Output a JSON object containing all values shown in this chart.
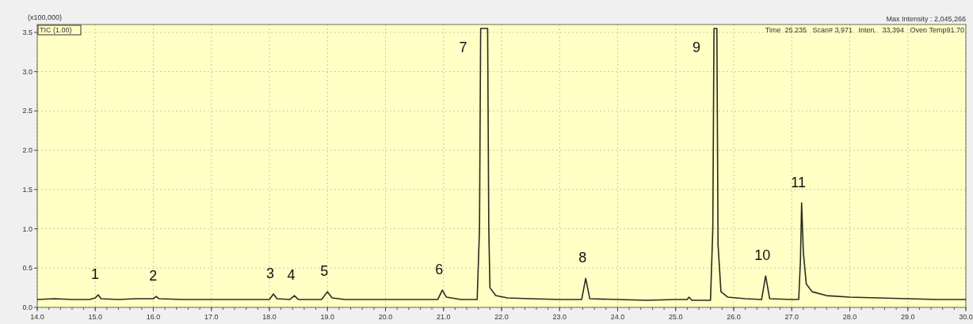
{
  "chart_data": {
    "type": "line",
    "ylabel": "(x100,000)",
    "xlim": [
      14,
      30
    ],
    "ylim": [
      0,
      3.6
    ],
    "xticks": [
      {
        "value": 14,
        "label": "14.0"
      },
      {
        "value": 15,
        "label": "15.0"
      },
      {
        "value": 16,
        "label": "16.0"
      },
      {
        "value": 17,
        "label": "17.0"
      },
      {
        "value": 18,
        "label": "18.0"
      },
      {
        "value": 19,
        "label": "19.0"
      },
      {
        "value": 20,
        "label": "20.0"
      },
      {
        "value": 21,
        "label": "21.0"
      },
      {
        "value": 22,
        "label": "22.0"
      },
      {
        "value": 23,
        "label": "23.0"
      },
      {
        "value": 24,
        "label": "24.0"
      },
      {
        "value": 25,
        "label": "25.0"
      },
      {
        "value": 26,
        "label": "26.0"
      },
      {
        "value": 27,
        "label": "27.0"
      },
      {
        "value": 28,
        "label": "28.0"
      },
      {
        "value": 29,
        "label": "29.0"
      },
      {
        "value": 30,
        "label": "30.0"
      }
    ],
    "yticks": [
      {
        "value": 0,
        "label": "0.0"
      },
      0.5,
      {
        "value": 1,
        "label": "1.0"
      },
      1.5,
      {
        "value": 2,
        "label": "2.0"
      },
      2.5,
      {
        "value": 3,
        "label": "3.0"
      },
      3.5
    ],
    "grid": true,
    "series": [
      {
        "color": "#2b2b1e",
        "x": [
          14.0,
          14.3,
          14.6,
          14.9,
          15.0,
          15.05,
          15.1,
          15.4,
          15.7,
          16.0,
          16.05,
          16.1,
          16.5,
          17.0,
          17.5,
          18.0,
          18.07,
          18.13,
          18.35,
          18.43,
          18.5,
          18.9,
          19.0,
          19.08,
          19.3,
          19.8,
          20.3,
          20.9,
          20.98,
          21.05,
          21.3,
          21.58,
          21.62,
          21.64,
          21.76,
          21.78,
          21.8,
          21.9,
          22.1,
          22.5,
          23.0,
          23.38,
          23.45,
          23.52,
          24.0,
          24.5,
          25.0,
          25.2,
          25.23,
          25.28,
          25.6,
          25.64,
          25.66,
          25.71,
          25.73,
          25.78,
          25.9,
          26.2,
          26.48,
          26.55,
          26.62,
          27.0,
          27.12,
          27.15,
          27.17,
          27.2,
          27.25,
          27.35,
          27.6,
          28.0,
          28.5,
          29.0,
          29.5,
          30.0
        ],
        "values": [
          0.1,
          0.11,
          0.1,
          0.1,
          0.12,
          0.16,
          0.11,
          0.1,
          0.11,
          0.11,
          0.14,
          0.11,
          0.1,
          0.1,
          0.1,
          0.1,
          0.17,
          0.11,
          0.1,
          0.15,
          0.1,
          0.1,
          0.2,
          0.12,
          0.1,
          0.1,
          0.1,
          0.1,
          0.22,
          0.13,
          0.1,
          0.1,
          1.0,
          3.55,
          3.55,
          1.0,
          0.25,
          0.15,
          0.12,
          0.11,
          0.1,
          0.1,
          0.37,
          0.11,
          0.1,
          0.09,
          0.1,
          0.1,
          0.13,
          0.09,
          0.09,
          1.0,
          3.55,
          3.55,
          0.8,
          0.2,
          0.13,
          0.11,
          0.1,
          0.4,
          0.11,
          0.1,
          0.1,
          0.6,
          1.33,
          0.7,
          0.3,
          0.2,
          0.15,
          0.13,
          0.12,
          0.11,
          0.1,
          0.1
        ]
      }
    ],
    "annotations": [
      "TIC (1.00)",
      "Max Intensity : 2,045,266",
      "Time  25.235   Scan# 3,971   Inten.   33,394   Oven Temp91.70",
      {
        "text": "1",
        "x": 15.05,
        "y": 0.16
      },
      {
        "text": "2",
        "x": 16.05,
        "y": 0.14
      },
      {
        "text": "3",
        "x": 18.07,
        "y": 0.17
      },
      {
        "text": "4",
        "x": 18.43,
        "y": 0.15
      },
      {
        "text": "5",
        "x": 19.0,
        "y": 0.2
      },
      {
        "text": "6",
        "x": 20.98,
        "y": 0.22
      },
      {
        "text": "7",
        "x": 21.64,
        "y": 3.55
      },
      {
        "text": "8",
        "x": 23.45,
        "y": 0.37
      },
      {
        "text": "9",
        "x": 25.66,
        "y": 3.55
      },
      {
        "text": "10",
        "x": 26.55,
        "y": 0.4
      },
      {
        "text": "11",
        "x": 27.17,
        "y": 1.33
      }
    ]
  }
}
